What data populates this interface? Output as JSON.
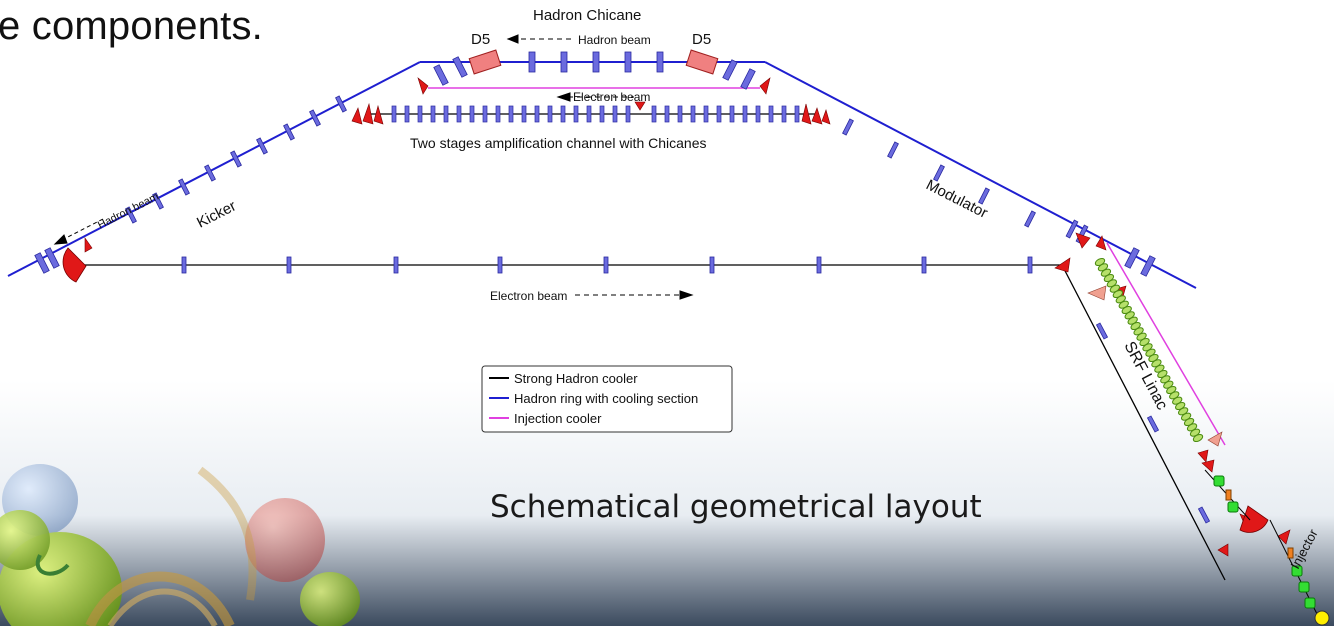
{
  "slide": {
    "heading_fragment": "e components.",
    "caption": "Schematical geometrical layout"
  },
  "diagram": {
    "title": "Hadron Chicane",
    "labels": {
      "d5_left": "D5",
      "d5_right": "D5",
      "hadron_beam_top": "Hadron beam",
      "electron_beam_top": "Electron beam",
      "amplification": "Two stages amplification channel with Chicanes",
      "hadron_beam_left": "Hadron beam",
      "kicker": "Kicker",
      "modulator": "Modulator",
      "electron_beam_bottom": "Electron beam",
      "srf_linac": "SRF Linac",
      "injector": "Injector"
    },
    "legend": [
      {
        "label": "Strong Hadron cooler",
        "color": "#000000"
      },
      {
        "label": "Hadron ring with cooling section",
        "color": "#1f1fd0"
      },
      {
        "label": "Injection cooler",
        "color": "#e040e0"
      }
    ],
    "colors": {
      "hadron_ring": "#1f1fd0",
      "electron_line": "#000000",
      "injection_cooler": "#e040e0",
      "quad_magnet": "#5555dd",
      "dipole_red": "#e01818",
      "d5_dipole": "#f08080",
      "srf_cavity": "#6ab820",
      "injector_green": "#33dd33",
      "injector_orange": "#f08020",
      "gun_yellow": "#ffee00"
    }
  }
}
